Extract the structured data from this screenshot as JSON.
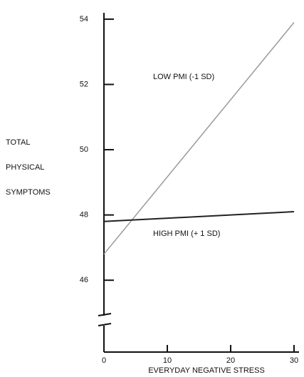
{
  "chart_data": {
    "type": "line",
    "ylabel": [
      "TOTAL",
      "PHYSICAL",
      "SYMPTOMS"
    ],
    "xlabel": "EVERYDAY NEGATIVE STRESS",
    "x": [
      0,
      30
    ],
    "series": [
      {
        "name": "LOW PMI (-1 SD)",
        "color": "#9a9a9a",
        "values": [
          46.8,
          53.9
        ]
      },
      {
        "name": "HIGH PMI (+ 1 SD)",
        "color": "#222222",
        "values": [
          47.8,
          48.1
        ]
      }
    ],
    "xlim": [
      0,
      30
    ],
    "xticks": [
      0,
      10,
      20,
      30
    ],
    "ylim": [
      45,
      54.5
    ],
    "yticks": [
      46,
      48,
      50,
      52,
      54
    ]
  }
}
